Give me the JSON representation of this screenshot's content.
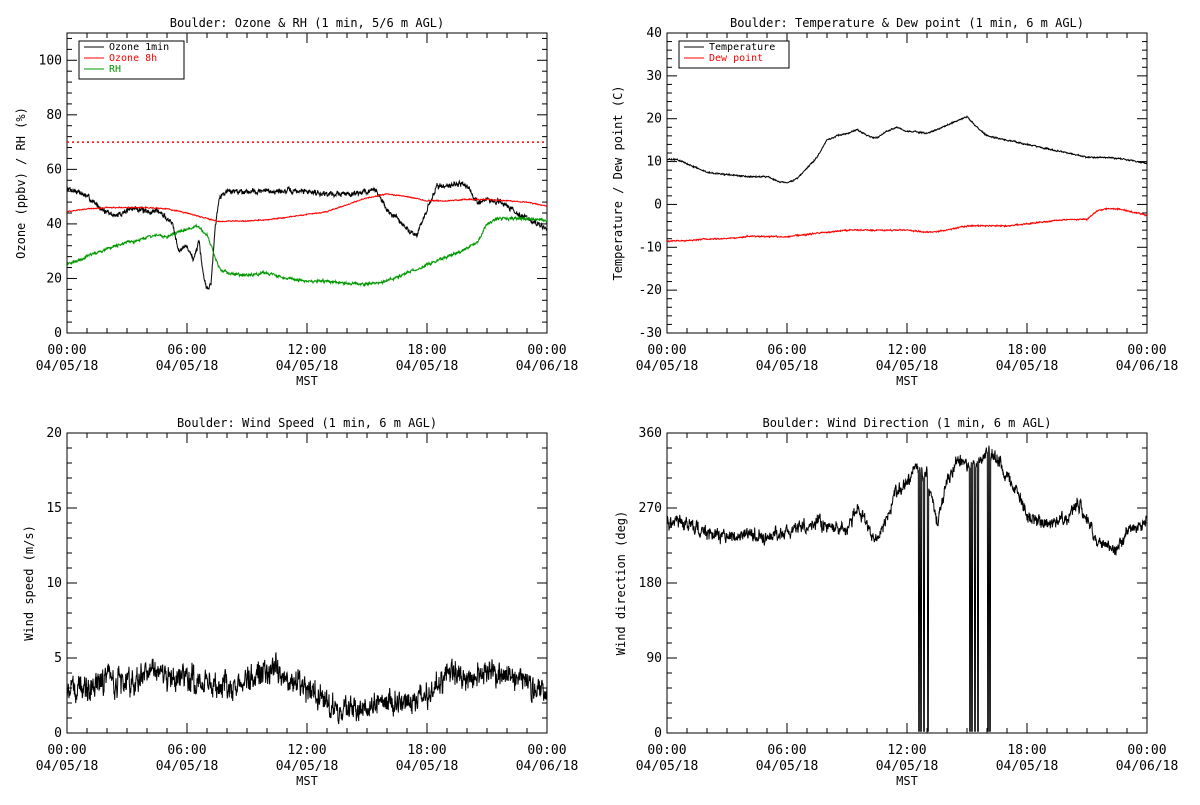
{
  "chart_data": [
    {
      "type": "line",
      "title": "Boulder: Ozone & RH (1 min, 5/6 m AGL)",
      "ylabel": "Ozone (ppbv) / RH (%)",
      "xlabel": "MST",
      "ylim": [
        0,
        110
      ],
      "yticks": [
        0,
        20,
        40,
        60,
        80,
        100
      ],
      "xlim": [
        0,
        24
      ],
      "xtick_hours": [
        0,
        6,
        12,
        18,
        24
      ],
      "xtick_labels": [
        [
          "00:00",
          "04/05/18"
        ],
        [
          "06:00",
          "04/05/18"
        ],
        [
          "12:00",
          "04/05/18"
        ],
        [
          "18:00",
          "04/05/18"
        ],
        [
          "00:00",
          "04/06/18"
        ]
      ],
      "legend": "top-left",
      "reference_line": {
        "y": 70,
        "color": "#ff0000",
        "style": "dotted"
      },
      "series": [
        {
          "name": "Ozone 1min",
          "color": "#000000",
          "noise": 1.5,
          "x": [
            0,
            0.5,
            1,
            1.5,
            2,
            2.5,
            3,
            3.5,
            4,
            4.5,
            5,
            5.3,
            5.6,
            6,
            6.3,
            6.6,
            6.8,
            7,
            7.2,
            7.4,
            7.5,
            7.6,
            8,
            9,
            10,
            11,
            12,
            13,
            14,
            15,
            15.5,
            16,
            16.5,
            17,
            17.5,
            18,
            18.5,
            19,
            19.5,
            20,
            20.3,
            20.5,
            21,
            22,
            22.5,
            23,
            23.5,
            24
          ],
          "y": [
            53,
            52,
            50,
            47,
            44,
            43,
            45,
            46,
            44,
            45,
            42,
            40,
            30,
            32,
            27,
            33,
            22,
            16,
            18,
            38,
            44,
            50,
            52,
            52,
            52,
            52,
            52,
            51,
            51,
            52,
            52,
            45,
            42,
            38,
            36,
            45,
            54,
            54,
            55,
            54,
            50,
            48,
            49,
            47,
            44,
            42,
            40,
            38
          ]
        },
        {
          "name": "Ozone 8h",
          "color": "#ff0000",
          "noise": 0.3,
          "x": [
            0,
            1,
            2,
            3,
            4,
            5,
            6,
            7,
            7.5,
            8,
            9,
            10,
            11,
            12,
            13,
            14,
            15,
            16,
            17,
            18,
            19,
            20,
            21,
            22,
            23,
            24
          ],
          "y": [
            44.5,
            45.5,
            46,
            46,
            46,
            45.5,
            44,
            42,
            41,
            41,
            41,
            41.5,
            42.5,
            43.5,
            44.5,
            47,
            49.5,
            51,
            50,
            48.5,
            48.5,
            49,
            49,
            48.5,
            48,
            46.5
          ]
        },
        {
          "name": "RH",
          "color": "#009900",
          "noise": 0.8,
          "x": [
            0,
            1,
            2,
            3,
            4,
            4.5,
            5,
            5.5,
            6,
            6.5,
            7,
            7.3,
            7.6,
            8,
            9,
            10,
            11,
            12,
            13,
            14,
            15,
            16,
            17,
            18,
            19,
            20,
            20.5,
            21,
            21.5,
            22,
            23,
            24
          ],
          "y": [
            25,
            28,
            31,
            33,
            35,
            36,
            35,
            37,
            38,
            39,
            36,
            30,
            24,
            22,
            21,
            22,
            20,
            19,
            19,
            18,
            18,
            19,
            22,
            25,
            28,
            31,
            33,
            40,
            42,
            42,
            42,
            41
          ]
        }
      ]
    },
    {
      "type": "line",
      "title": "Boulder: Temperature & Dew point (1 min, 6 m AGL)",
      "ylabel": "Temperature / Dew point (C)",
      "xlabel": "MST",
      "ylim": [
        -30,
        40
      ],
      "yticks": [
        -30,
        -20,
        -10,
        0,
        10,
        20,
        30,
        40
      ],
      "xlim": [
        0,
        24
      ],
      "xtick_hours": [
        0,
        6,
        12,
        18,
        24
      ],
      "xtick_labels": [
        [
          "00:00",
          "04/05/18"
        ],
        [
          "06:00",
          "04/05/18"
        ],
        [
          "12:00",
          "04/05/18"
        ],
        [
          "18:00",
          "04/05/18"
        ],
        [
          "00:00",
          "04/06/18"
        ]
      ],
      "legend": "top-left",
      "series": [
        {
          "name": "Temperature",
          "color": "#000000",
          "noise": 0.25,
          "x": [
            0,
            0.5,
            1,
            1.5,
            2,
            3,
            4,
            4.5,
            5,
            5.5,
            6,
            6.5,
            7,
            7.5,
            8,
            8.5,
            9,
            9.5,
            10,
            10.5,
            11,
            11.5,
            12,
            12.5,
            13,
            13.5,
            14,
            14.5,
            15,
            15.5,
            16,
            17,
            18,
            19,
            20,
            21,
            22,
            23,
            24
          ],
          "y": [
            10.5,
            10.5,
            9.5,
            8.5,
            7.5,
            7,
            6.5,
            6.5,
            6.5,
            5.5,
            5,
            6,
            8.5,
            11,
            15,
            16,
            16.5,
            17.5,
            16,
            15.5,
            17,
            18,
            17,
            17,
            16.5,
            17.5,
            18.5,
            19.5,
            20.5,
            18,
            16,
            15,
            14,
            13,
            12,
            11,
            11,
            10.5,
            9.5
          ]
        },
        {
          "name": "Dew point",
          "color": "#ff0000",
          "noise": 0.25,
          "x": [
            0,
            1,
            2,
            3,
            4,
            5,
            6,
            7,
            8,
            9,
            10,
            11,
            12,
            13,
            14,
            15,
            16,
            17,
            18,
            19,
            20,
            21,
            21.5,
            22,
            22.5,
            23,
            23.5,
            24
          ],
          "y": [
            -8.5,
            -8.5,
            -8,
            -8,
            -7.5,
            -7.5,
            -7.5,
            -7,
            -6.5,
            -6,
            -6,
            -6,
            -6,
            -6.5,
            -6,
            -5,
            -5,
            -5,
            -4.5,
            -4,
            -3.5,
            -3.5,
            -1.5,
            -1,
            -1,
            -1.5,
            -2,
            -2.5
          ]
        }
      ]
    },
    {
      "type": "line",
      "title": "Boulder: Wind Speed (1 min, 6 m AGL)",
      "ylabel": "Wind speed (m/s)",
      "xlabel": "MST",
      "ylim": [
        0,
        20
      ],
      "yticks": [
        0,
        5,
        10,
        15,
        20
      ],
      "xlim": [
        0,
        24
      ],
      "xtick_hours": [
        0,
        6,
        12,
        18,
        24
      ],
      "xtick_labels": [
        [
          "00:00",
          "04/05/18"
        ],
        [
          "06:00",
          "04/05/18"
        ],
        [
          "12:00",
          "04/05/18"
        ],
        [
          "18:00",
          "04/05/18"
        ],
        [
          "00:00",
          "04/06/18"
        ]
      ],
      "series": [
        {
          "name": "",
          "color": "#000000",
          "noise": 1.3,
          "x": [
            0,
            1,
            2,
            3,
            4,
            5,
            6,
            7,
            8,
            9,
            10,
            10.5,
            11,
            12,
            13,
            13.5,
            14,
            15,
            16,
            17,
            18,
            19,
            19.5,
            20,
            21,
            22,
            23,
            24
          ],
          "y": [
            3,
            3,
            3.5,
            3.5,
            4,
            4,
            3.5,
            3.5,
            3,
            3.5,
            4,
            4.5,
            3.5,
            3,
            2,
            1.5,
            1.5,
            2,
            2,
            2,
            2.5,
            4,
            4.5,
            3.5,
            4,
            4,
            3.5,
            2.5
          ]
        }
      ]
    },
    {
      "type": "line",
      "title": "Boulder: Wind Direction (1 min, 6 m AGL)",
      "ylabel": "Wind direction (deg)",
      "xlabel": "MST",
      "ylim": [
        0,
        360
      ],
      "yticks": [
        0,
        90,
        180,
        270,
        360
      ],
      "xlim": [
        0,
        24
      ],
      "xtick_hours": [
        0,
        6,
        12,
        18,
        24
      ],
      "xtick_labels": [
        [
          "00:00",
          "04/05/18"
        ],
        [
          "06:00",
          "04/05/18"
        ],
        [
          "12:00",
          "04/05/18"
        ],
        [
          "18:00",
          "04/05/18"
        ],
        [
          "00:00",
          "04/06/18"
        ]
      ],
      "series": [
        {
          "name": "",
          "color": "#000000",
          "noise": 12,
          "x": [
            0,
            1,
            2,
            3,
            4,
            5,
            6,
            7,
            7.5,
            8,
            9,
            9.5,
            10,
            10.5,
            11,
            11.5,
            12,
            12.5,
            13,
            13.5,
            14,
            14.5,
            15,
            15.5,
            16,
            16.5,
            17,
            17.5,
            18,
            19,
            20,
            20.5,
            21,
            21.5,
            22,
            22.5,
            23,
            24
          ],
          "y": [
            255,
            250,
            240,
            235,
            240,
            235,
            240,
            250,
            255,
            245,
            245,
            270,
            250,
            230,
            260,
            290,
            300,
            320,
            310,
            250,
            300,
            330,
            320,
            320,
            340,
            330,
            310,
            290,
            260,
            250,
            255,
            275,
            260,
            230,
            225,
            220,
            240,
            255
          ]
        }
      ],
      "dropouts_hours": [
        12.6,
        12.7,
        12.85,
        13.05,
        15.15,
        15.25,
        15.4,
        15.55,
        16.05,
        16.15
      ]
    }
  ]
}
